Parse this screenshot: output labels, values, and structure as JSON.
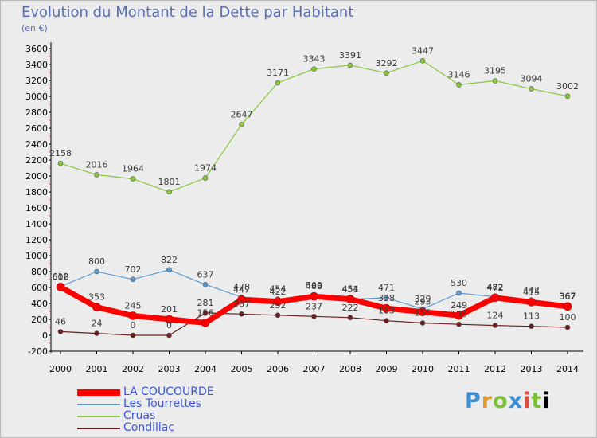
{
  "header": {
    "title": "Evolution du Montant de la Dette par Habitant",
    "subtitle": "(en €)"
  },
  "brand": {
    "text": "Proxiti"
  },
  "chart_data": {
    "type": "line",
    "x": [
      "2000",
      "2001",
      "2002",
      "2003",
      "2004",
      "2005",
      "2006",
      "2007",
      "2008",
      "2009",
      "2010",
      "2011",
      "2012",
      "2013",
      "2014"
    ],
    "ylim": [
      -200,
      3600
    ],
    "yticks": [
      -200,
      0,
      200,
      400,
      600,
      800,
      1000,
      1200,
      1400,
      1600,
      1800,
      2000,
      2200,
      2400,
      2600,
      2800,
      3000,
      3200,
      3400,
      3600
    ],
    "grid": false,
    "legend_position": "bottom-left",
    "series": [
      {
        "name": "LA COUCOURDE",
        "color": "#ff0000",
        "values": [
          606,
          353,
          245,
          201,
          156,
          447,
          422,
          488,
          454,
          338,
          293,
          249,
          472,
          415,
          362
        ]
      },
      {
        "name": "Les Tourrettes",
        "color": "#5b9bd5",
        "values": [
          612,
          800,
          702,
          822,
          637,
          478,
          454,
          500,
          451,
          471,
          329,
          530,
          482,
          442,
          367
        ]
      },
      {
        "name": "Cruas",
        "color": "#86c83b",
        "values": [
          2158,
          2016,
          1964,
          1801,
          1974,
          2647,
          3171,
          3343,
          3391,
          3292,
          3447,
          3146,
          3195,
          3094,
          3002
        ]
      },
      {
        "name": "Condillac",
        "color": "#6b1e1e",
        "values": [
          46,
          24,
          0,
          0,
          281,
          267,
          252,
          237,
          222,
          183,
          155,
          138,
          124,
          113,
          100
        ]
      }
    ]
  }
}
